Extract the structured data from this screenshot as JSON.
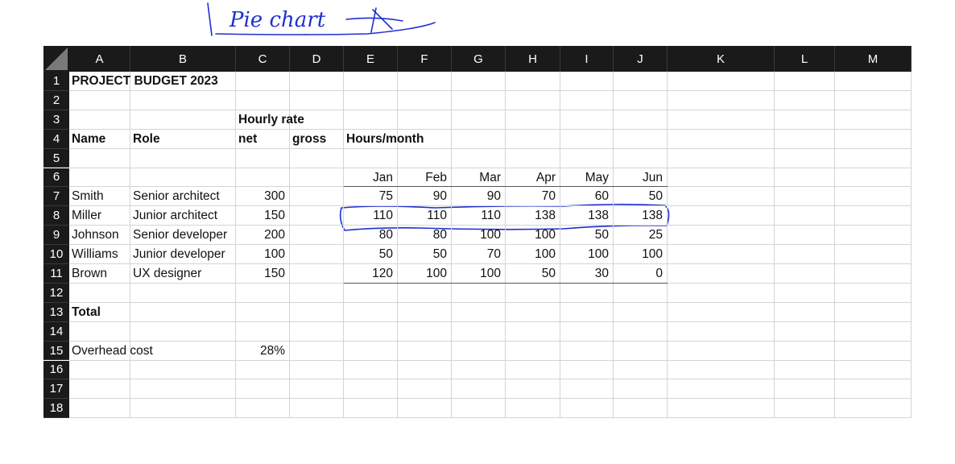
{
  "annotation": {
    "handwritten_note": "Pie chart"
  },
  "columns": [
    "A",
    "B",
    "C",
    "D",
    "E",
    "F",
    "G",
    "H",
    "I",
    "J",
    "K",
    "L",
    "M"
  ],
  "rows": [
    "1",
    "2",
    "3",
    "4",
    "5",
    "6",
    "7",
    "8",
    "9",
    "10",
    "11",
    "12",
    "13",
    "14",
    "15",
    "16",
    "17",
    "18"
  ],
  "cells": {
    "title": "PROJECT BUDGET 2023",
    "hourly_rate": "Hourly rate",
    "name_header": "Name",
    "role_header": "Role",
    "net_header": "net",
    "gross_header": "gross",
    "hours_header": "Hours/month",
    "total_label": "Total",
    "overhead_label": "Overhead cost",
    "overhead_value": "28%"
  },
  "months": [
    "Jan",
    "Feb",
    "Mar",
    "Apr",
    "May",
    "Jun"
  ],
  "people": [
    {
      "name": "Smith",
      "role": "Senior architect",
      "net": "300",
      "hours": [
        "75",
        "90",
        "90",
        "70",
        "60",
        "50"
      ]
    },
    {
      "name": "Miller",
      "role": "Junior architect",
      "net": "150",
      "hours": [
        "110",
        "110",
        "110",
        "138",
        "138",
        "138"
      ]
    },
    {
      "name": "Johnson",
      "role": "Senior developer",
      "net": "200",
      "hours": [
        "80",
        "80",
        "100",
        "100",
        "50",
        "25"
      ]
    },
    {
      "name": "Williams",
      "role": "Junior developer",
      "net": "100",
      "hours": [
        "50",
        "50",
        "70",
        "100",
        "100",
        "100"
      ]
    },
    {
      "name": "Brown",
      "role": "UX designer",
      "net": "150",
      "hours": [
        "120",
        "100",
        "100",
        "50",
        "30",
        "0"
      ]
    }
  ],
  "colors": {
    "header_bg": "#1a1a1a",
    "header_text": "#ffffff",
    "grid": "#d4d4d4",
    "ink": "#1f2fd0"
  }
}
